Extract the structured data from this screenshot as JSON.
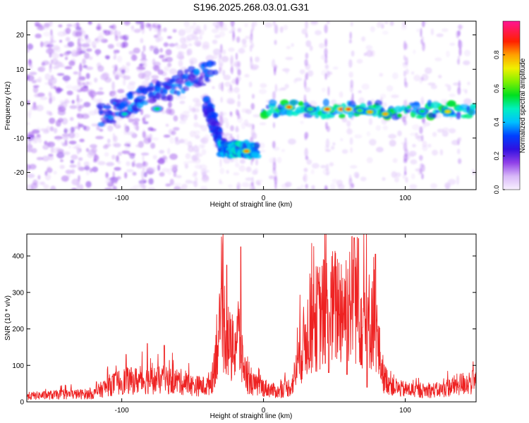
{
  "figure_title": "S196.2025.268.03.01.G31",
  "colors": {
    "snr_line": "#ee2222",
    "axis": "#000000",
    "spectro_low": "#c9a8f0",
    "spectro_mid": "#6a10d8"
  },
  "chart_data": [
    {
      "type": "heatmap",
      "title": "S196.2025.268.03.01.G31",
      "xlabel": "Height of straight line (km)",
      "ylabel": "Frequency (Hz)",
      "xlim": [
        -167,
        150
      ],
      "ylim": [
        -25,
        24
      ],
      "xticks": [
        -100,
        0,
        100
      ],
      "yticks": [
        20,
        10,
        0,
        -10,
        -20
      ],
      "colorbar": {
        "label": "Normalized spectral amplitude",
        "range": [
          0.0,
          1.0
        ],
        "ticks": [
          0.0,
          0.2,
          0.4,
          0.6,
          0.8
        ],
        "tick_labels": [
          "0.0",
          "0.2",
          "0.4",
          "0.6",
          "0.8"
        ],
        "stops": [
          {
            "v": 0.0,
            "color": "#f8f0ff"
          },
          {
            "v": 0.08,
            "color": "#d8b8f8"
          },
          {
            "v": 0.16,
            "color": "#9040e8"
          },
          {
            "v": 0.24,
            "color": "#3010e0"
          },
          {
            "v": 0.32,
            "color": "#0040ff"
          },
          {
            "v": 0.4,
            "color": "#00c0ff"
          },
          {
            "v": 0.48,
            "color": "#00f0c0"
          },
          {
            "v": 0.56,
            "color": "#00e020"
          },
          {
            "v": 0.64,
            "color": "#80f000"
          },
          {
            "v": 0.72,
            "color": "#f0f000"
          },
          {
            "v": 0.8,
            "color": "#ffa000"
          },
          {
            "v": 0.88,
            "color": "#ff2000"
          },
          {
            "v": 1.0,
            "color": "#ff1493"
          }
        ]
      },
      "features": [
        {
          "name": "descending-arc",
          "from": [
            -115,
            -3.5
          ],
          "to": [
            -35,
            10
          ],
          "width_hz": 3,
          "amplitude": 0.3
        },
        {
          "name": "steep-drop",
          "from": [
            -40,
            0
          ],
          "to": [
            -28,
            -14
          ],
          "width_hz": 2,
          "amplitude": 0.28
        },
        {
          "name": "low-trace",
          "from": [
            -30,
            -13
          ],
          "to": [
            -5,
            -13.5
          ],
          "width_hz": 2,
          "amplitude": 0.4
        },
        {
          "name": "flat-trace",
          "from": [
            0,
            -1.5
          ],
          "to": [
            150,
            -2
          ],
          "width_hz": 2,
          "amplitude": 0.45
        }
      ],
      "peaks": [
        {
          "x": -12,
          "y": -13.8,
          "amplitude": 0.82
        },
        {
          "x": 18,
          "y": -1,
          "amplitude": 0.85
        },
        {
          "x": 33,
          "y": -1.6,
          "amplitude": 0.6
        },
        {
          "x": 45,
          "y": -1.6,
          "amplitude": 0.9
        },
        {
          "x": 55,
          "y": -1.6,
          "amplitude": 0.92
        },
        {
          "x": 60,
          "y": -1.6,
          "amplitude": 0.9
        },
        {
          "x": 68,
          "y": -2,
          "amplitude": 0.6
        },
        {
          "x": 75,
          "y": -2.4,
          "amplitude": 0.8
        },
        {
          "x": 86,
          "y": -3,
          "amplitude": 0.8
        },
        {
          "x": 112,
          "y": -2.2,
          "amplitude": 0.55
        },
        {
          "x": 130,
          "y": -2.3,
          "amplitude": 0.75
        },
        {
          "x": -75,
          "y": -1.5,
          "amplitude": 0.55
        },
        {
          "x": -98,
          "y": -3,
          "amplitude": 0.5
        }
      ]
    },
    {
      "type": "line",
      "xlabel": "Height of straight line (km)",
      "ylabel": "SNR (10 * v/v)",
      "xlim": [
        -167,
        150
      ],
      "ylim": [
        0,
        460
      ],
      "xticks": [
        -100,
        0,
        100
      ],
      "yticks": [
        0,
        100,
        200,
        300,
        400
      ],
      "series": [
        {
          "name": "SNR",
          "envelope": [
            {
              "x": -167,
              "y": 22
            },
            {
              "x": -140,
              "y": 28
            },
            {
              "x": -120,
              "y": 30
            },
            {
              "x": -110,
              "y": 60
            },
            {
              "x": -100,
              "y": 78
            },
            {
              "x": -80,
              "y": 82
            },
            {
              "x": -60,
              "y": 78
            },
            {
              "x": -50,
              "y": 62
            },
            {
              "x": -40,
              "y": 58
            },
            {
              "x": -36,
              "y": 90
            },
            {
              "x": -33,
              "y": 220
            },
            {
              "x": -28,
              "y": 300
            },
            {
              "x": -25,
              "y": 240
            },
            {
              "x": -22,
              "y": 170
            },
            {
              "x": -18,
              "y": 270
            },
            {
              "x": -15,
              "y": 150
            },
            {
              "x": -10,
              "y": 70
            },
            {
              "x": 0,
              "y": 55
            },
            {
              "x": 10,
              "y": 38
            },
            {
              "x": 20,
              "y": 60
            },
            {
              "x": 25,
              "y": 160
            },
            {
              "x": 30,
              "y": 250
            },
            {
              "x": 36,
              "y": 310
            },
            {
              "x": 44,
              "y": 340
            },
            {
              "x": 52,
              "y": 360
            },
            {
              "x": 58,
              "y": 370
            },
            {
              "x": 62,
              "y": 400
            },
            {
              "x": 66,
              "y": 390
            },
            {
              "x": 70,
              "y": 320
            },
            {
              "x": 74,
              "y": 300
            },
            {
              "x": 78,
              "y": 350
            },
            {
              "x": 81,
              "y": 200
            },
            {
              "x": 85,
              "y": 90
            },
            {
              "x": 95,
              "y": 50
            },
            {
              "x": 110,
              "y": 42
            },
            {
              "x": 125,
              "y": 45
            },
            {
              "x": 135,
              "y": 62
            },
            {
              "x": 145,
              "y": 75
            },
            {
              "x": 150,
              "y": 70
            }
          ],
          "spikes": [
            {
              "x": -30,
              "y": 310
            },
            {
              "x": -26,
              "y": 375
            },
            {
              "x": -16,
              "y": 425
            },
            {
              "x": 59,
              "y": 450
            },
            {
              "x": 64,
              "y": 450
            },
            {
              "x": 67,
              "y": 448
            },
            {
              "x": 79,
              "y": 405
            },
            {
              "x": -97,
              "y": 130
            },
            {
              "x": -82,
              "y": 160
            },
            {
              "x": -70,
              "y": 155
            }
          ],
          "dips": [
            {
              "x": 46,
              "y": 80
            },
            {
              "x": 59,
              "y": 75
            },
            {
              "x": 73,
              "y": 40
            }
          ]
        }
      ]
    }
  ]
}
